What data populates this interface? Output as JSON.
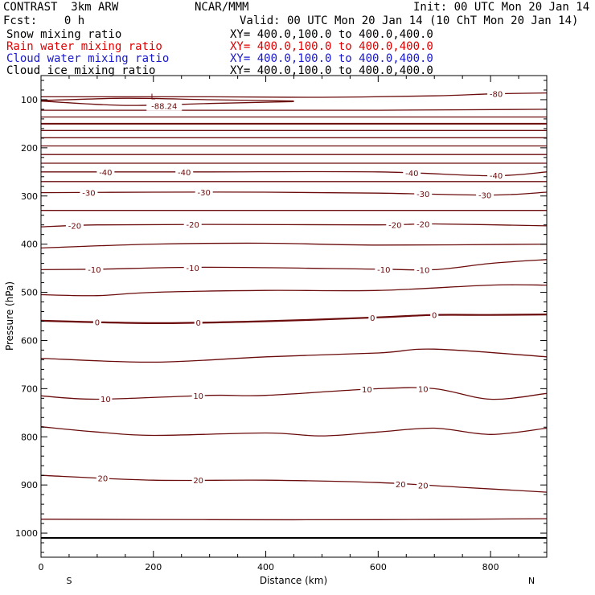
{
  "header": {
    "title": "CONTRAST  3km ARW",
    "center": "NCAR/MMM",
    "init": "Init: 00 UTC Mon 20 Jan 14",
    "fcst": "Fcst:    0 h",
    "valid": "Valid: 00 UTC Mon 20 Jan 14 (10 ChT Mon 20 Jan 14)"
  },
  "fields": [
    {
      "name": "Snow mixing ratio",
      "xy": "XY= 400.0,100.0 to 400.0,400.0",
      "color": "#000000"
    },
    {
      "name": "Rain water mixing ratio",
      "xy": "XY= 400.0,100.0 to 400.0,400.0",
      "color": "#e00000"
    },
    {
      "name": "Cloud water mixing ratio",
      "xy": "XY= 400.0,100.0 to 400.0,400.0",
      "color": "#1818d0"
    },
    {
      "name": "Cloud ice mixing ratio",
      "xy": "XY= 400.0,100.0 to 400.0,400.0",
      "color": "#000000"
    }
  ],
  "chart_data": {
    "type": "line",
    "xlabel": "Distance (km)",
    "ylabel": "Pressure (hPa)",
    "xlim": [
      0,
      900
    ],
    "ylim": [
      1050,
      50
    ],
    "xticks": [
      0,
      200,
      400,
      600,
      800
    ],
    "yticks": [
      100,
      200,
      300,
      400,
      500,
      600,
      700,
      800,
      900,
      1000
    ],
    "end_labels": {
      "left": "S",
      "right": "N"
    },
    "contour_color": "#6b0b0b",
    "low_marker": {
      "label": "L",
      "value": "-88.24",
      "x": 225,
      "p": 103
    },
    "series": [
      {
        "x": [
          0,
          300,
          600,
          900
        ],
        "p": [
          1010,
          1010,
          1010,
          1010
        ],
        "style": "ground"
      },
      {
        "x": [
          0,
          300,
          600,
          900
        ],
        "p": [
          971,
          972,
          972,
          970
        ]
      },
      {
        "x": [
          0,
          200,
          400,
          600,
          750,
          900
        ],
        "p": [
          880,
          890,
          890,
          895,
          905,
          915
        ],
        "label": "20",
        "labels_at": [
          110,
          280,
          640,
          680
        ]
      },
      {
        "x": [
          0,
          100,
          200,
          400,
          500,
          600,
          700,
          800,
          900
        ],
        "p": [
          779,
          790,
          797,
          792,
          798,
          790,
          782,
          795,
          782
        ]
      },
      {
        "x": [
          0,
          100,
          300,
          400,
          600,
          700,
          800,
          900
        ],
        "p": [
          715,
          722,
          714,
          714,
          700,
          700,
          722,
          710
        ],
        "label": "10",
        "labels_at": [
          115,
          280,
          580,
          680
        ]
      },
      {
        "x": [
          0,
          200,
          400,
          600,
          700,
          900
        ],
        "p": [
          637,
          645,
          634,
          626,
          618,
          634
        ]
      },
      {
        "x": [
          0,
          200,
          400,
          600,
          700,
          800,
          900
        ],
        "p": [
          559,
          564,
          560,
          552,
          547,
          547,
          546
        ],
        "label": "0",
        "labels_at": [
          100,
          280,
          590,
          700
        ],
        "style": "bold"
      },
      {
        "x": [
          0,
          100,
          200,
          400,
          600,
          800,
          900
        ],
        "p": [
          505,
          507,
          500,
          496,
          496,
          485,
          485
        ]
      },
      {
        "x": [
          0,
          100,
          300,
          600,
          700,
          800,
          900
        ],
        "p": [
          453,
          452,
          448,
          452,
          453,
          440,
          432
        ],
        "label": "-10",
        "labels_at": [
          95,
          270,
          610,
          680
        ]
      },
      {
        "x": [
          0,
          200,
          400,
          600,
          900
        ],
        "p": [
          408,
          400,
          398,
          402,
          400
        ]
      },
      {
        "x": [
          0,
          100,
          300,
          600,
          700,
          900
        ],
        "p": [
          364,
          360,
          359,
          360,
          358,
          362
        ],
        "label": "-20",
        "labels_at": [
          60,
          270,
          630,
          680
        ]
      },
      {
        "x": [
          0,
          300,
          600,
          900
        ],
        "p": [
          330,
          330,
          330,
          330
        ]
      },
      {
        "x": [
          0,
          200,
          400,
          600,
          800,
          900
        ],
        "p": [
          293,
          292,
          292,
          294,
          298,
          292
        ],
        "label": "-30",
        "labels_at": [
          85,
          290,
          680,
          790
        ]
      },
      {
        "x": [
          0,
          300,
          600,
          900
        ],
        "p": [
          270,
          270,
          270,
          270
        ]
      },
      {
        "x": [
          0,
          100,
          300,
          600,
          800,
          900
        ],
        "p": [
          250,
          250,
          250,
          250,
          258,
          250
        ],
        "label": "-40",
        "labels_at": [
          115,
          255,
          660,
          810
        ]
      },
      {
        "x": [
          0,
          300,
          600,
          900
        ],
        "p": [
          232,
          232,
          232,
          232
        ]
      },
      {
        "x": [
          0,
          300,
          600,
          900
        ],
        "p": [
          214,
          214,
          214,
          214
        ]
      },
      {
        "x": [
          0,
          300,
          600,
          900
        ],
        "p": [
          196,
          196,
          196,
          196
        ]
      },
      {
        "x": [
          0,
          300,
          600,
          900
        ],
        "p": [
          179,
          179,
          179,
          179
        ]
      },
      {
        "x": [
          0,
          300,
          600,
          900
        ],
        "p": [
          164,
          164,
          164,
          164
        ]
      },
      {
        "x": [
          0,
          300,
          600,
          900
        ],
        "p": [
          150,
          150,
          150,
          150
        ],
        "style": "heavy"
      },
      {
        "x": [
          0,
          300,
          600,
          900
        ],
        "p": [
          136,
          136,
          136,
          136
        ]
      },
      {
        "x": [
          0,
          200,
          400,
          600,
          900
        ],
        "p": [
          122,
          122,
          122,
          122,
          120
        ]
      },
      {
        "x": [
          0,
          150,
          300,
          450
        ],
        "p": [
          102,
          97,
          100,
          103
        ]
      },
      {
        "x": [
          0,
          150,
          300,
          450
        ],
        "p": [
          103,
          112,
          108,
          104
        ]
      },
      {
        "x": [
          0,
          300,
          500,
          700,
          800,
          900
        ],
        "p": [
          94,
          94,
          95,
          92,
          88,
          86
        ],
        "label": "-80",
        "labels_at": [
          810
        ]
      }
    ]
  }
}
